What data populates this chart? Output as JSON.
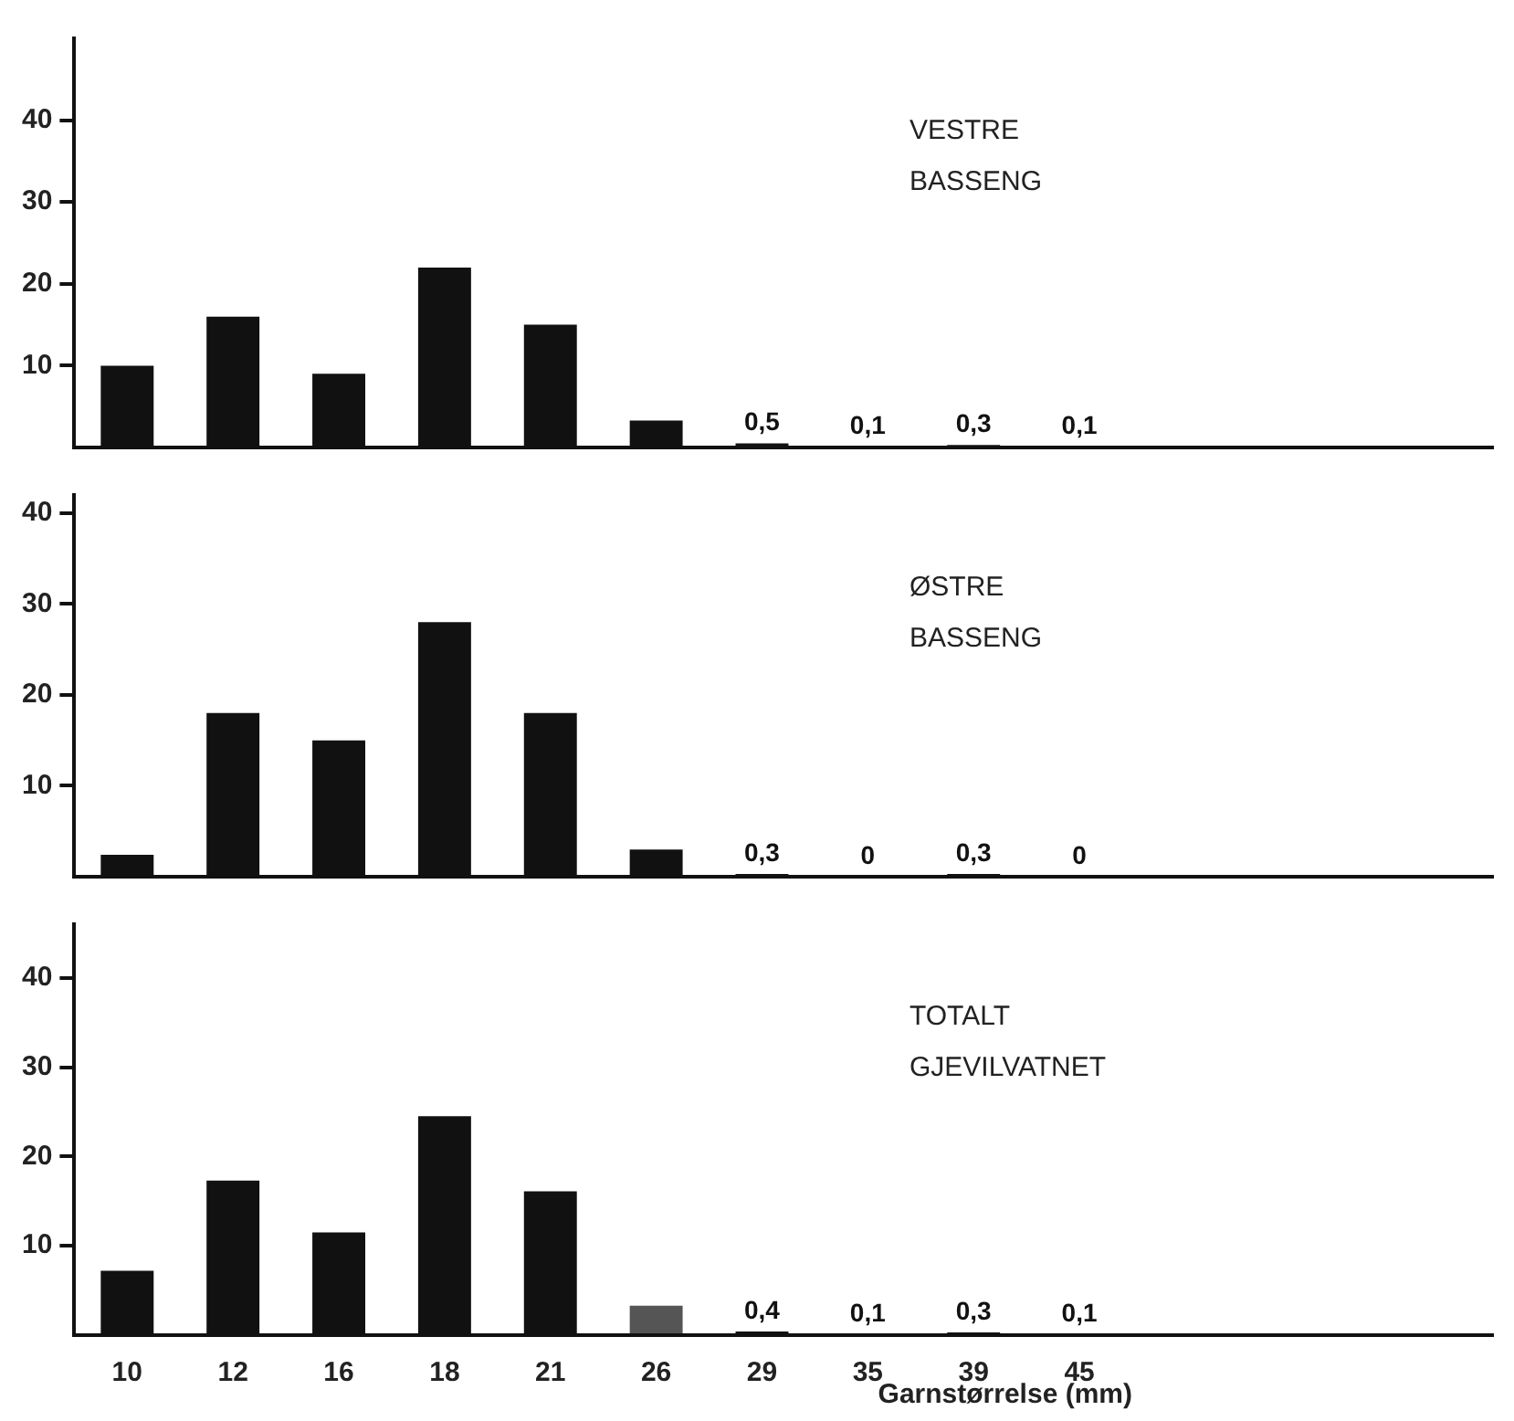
{
  "chart_data": [
    {
      "type": "bar",
      "title": "VESTRE BASSENG",
      "categories": [
        "10",
        "12",
        "16",
        "18",
        "21",
        "26",
        "29",
        "35",
        "39",
        "45"
      ],
      "values": [
        10,
        16,
        9,
        22,
        15,
        3.3,
        0.5,
        0.1,
        0.3,
        0.1
      ],
      "value_labels": [
        null,
        null,
        null,
        null,
        null,
        null,
        "0,5",
        "0,1",
        "0,3",
        "0,1"
      ],
      "color": "#111111",
      "ylim": [
        0,
        50
      ],
      "yticks": [
        10,
        20,
        30,
        40
      ],
      "tick_labels": "y"
    },
    {
      "type": "bar",
      "title": "ØSTRE BASSENG",
      "categories": [
        "10",
        "12",
        "16",
        "18",
        "21",
        "26",
        "29",
        "35",
        "39",
        "45"
      ],
      "values": [
        2.4,
        18,
        15,
        28,
        18,
        3,
        0.3,
        0,
        0.3,
        0
      ],
      "value_labels": [
        null,
        null,
        null,
        null,
        null,
        null,
        "0,3",
        "0",
        "0,3",
        "0"
      ],
      "color": "#111111",
      "ylim": [
        0,
        42
      ],
      "yticks": [
        10,
        20,
        30,
        40
      ],
      "tick_labels": "y"
    },
    {
      "type": "bar",
      "title": "TOTALT GJEVILVATNET",
      "xlabel": "Garnstørrelse (mm)",
      "categories": [
        "10",
        "12",
        "16",
        "18",
        "21",
        "26",
        "29",
        "35",
        "39",
        "45"
      ],
      "values": [
        7.2,
        17.3,
        11.5,
        24.5,
        16.1,
        3.3,
        0.4,
        0.1,
        0.3,
        0.1
      ],
      "value_labels": [
        null,
        null,
        null,
        null,
        null,
        null,
        "0,4",
        "0,1",
        "0,3",
        "0,1"
      ],
      "colors": [
        "#111111",
        "#111111",
        "#111111",
        "#111111",
        "#111111",
        "#555555",
        "#111111",
        "#111111",
        "#111111",
        "#111111"
      ],
      "ylim": [
        0,
        46
      ],
      "yticks": [
        10,
        20,
        30,
        40
      ]
    }
  ]
}
